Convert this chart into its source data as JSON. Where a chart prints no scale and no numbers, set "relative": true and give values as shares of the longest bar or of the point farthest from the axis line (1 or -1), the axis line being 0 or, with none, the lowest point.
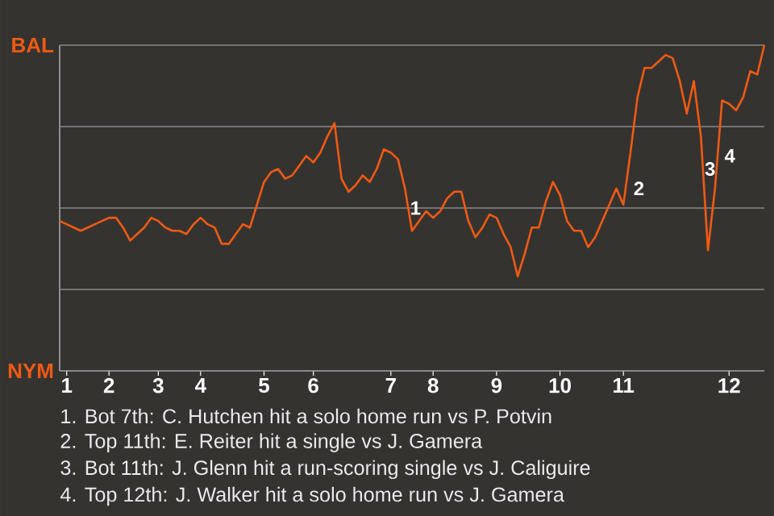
{
  "chart_data": {
    "type": "line",
    "color": "#f05a14",
    "relative": true,
    "categories": [
      null,
      "1",
      null,
      null,
      null,
      null,
      null,
      "2",
      null,
      null,
      null,
      null,
      null,
      null,
      "3",
      null,
      null,
      null,
      null,
      null,
      "4",
      null,
      null,
      null,
      null,
      null,
      null,
      null,
      null,
      "5",
      null,
      null,
      null,
      null,
      null,
      null,
      "6",
      null,
      null,
      null,
      null,
      null,
      null,
      null,
      null,
      null,
      null,
      "7",
      null,
      null,
      null,
      null,
      null,
      "8",
      null,
      null,
      null,
      null,
      null,
      null,
      null,
      null,
      "9",
      null,
      null,
      null,
      null,
      null,
      null,
      null,
      null,
      "10",
      null,
      null,
      null,
      null,
      null,
      null,
      null,
      null,
      "11",
      null,
      null,
      null,
      null,
      null,
      null,
      null,
      null,
      null,
      null,
      null,
      null,
      null,
      null,
      "12",
      null,
      null,
      null,
      null,
      null
    ],
    "values": [
      0.46,
      0.45,
      0.44,
      0.43,
      0.44,
      0.45,
      0.46,
      0.47,
      0.47,
      0.44,
      0.4,
      0.42,
      0.44,
      0.47,
      0.46,
      0.44,
      0.43,
      0.43,
      0.42,
      0.45,
      0.47,
      0.45,
      0.44,
      0.39,
      0.39,
      0.42,
      0.45,
      0.44,
      0.51,
      0.58,
      0.61,
      0.62,
      0.59,
      0.6,
      0.63,
      0.66,
      0.64,
      0.67,
      0.72,
      0.76,
      0.59,
      0.55,
      0.57,
      0.6,
      0.58,
      0.62,
      0.68,
      0.67,
      0.65,
      0.56,
      0.43,
      0.46,
      0.49,
      0.47,
      0.49,
      0.53,
      0.55,
      0.55,
      0.46,
      0.41,
      0.44,
      0.48,
      0.47,
      0.42,
      0.38,
      0.29,
      0.36,
      0.44,
      0.44,
      0.52,
      0.58,
      0.54,
      0.46,
      0.43,
      0.43,
      0.38,
      0.41,
      0.46,
      0.51,
      0.56,
      0.51,
      0.67,
      0.84,
      0.93,
      0.93,
      0.95,
      0.97,
      0.96,
      0.89,
      0.79,
      0.89,
      0.72,
      0.37,
      0.56,
      0.83,
      0.82,
      0.8,
      0.84,
      0.92,
      0.91,
      1.0
    ],
    "ref_lines": [
      {
        "axis": "y",
        "value": 0.25,
        "color": "#8a8a88"
      },
      {
        "axis": "y",
        "value": 0.5,
        "color": "#8a8a88"
      },
      {
        "axis": "y",
        "value": 0.75,
        "color": "#8a8a88"
      },
      {
        "axis": "y",
        "value": 1,
        "color": "#8a8a88"
      }
    ],
    "annotations": [
      "BAL",
      "NYM",
      "1",
      "2",
      "3",
      "4",
      "1. Bot 7th: C. Hutchen hit a solo home run vs P. Potvin",
      "2. Top 11th: E. Reiter hit a single vs J. Gamera",
      "3. Bot 11th: J. Glenn hit a run-scoring single vs J. Caliguire",
      "4. Top 12th: J. Walker hit a solo home run vs J. Gamera"
    ]
  }
}
